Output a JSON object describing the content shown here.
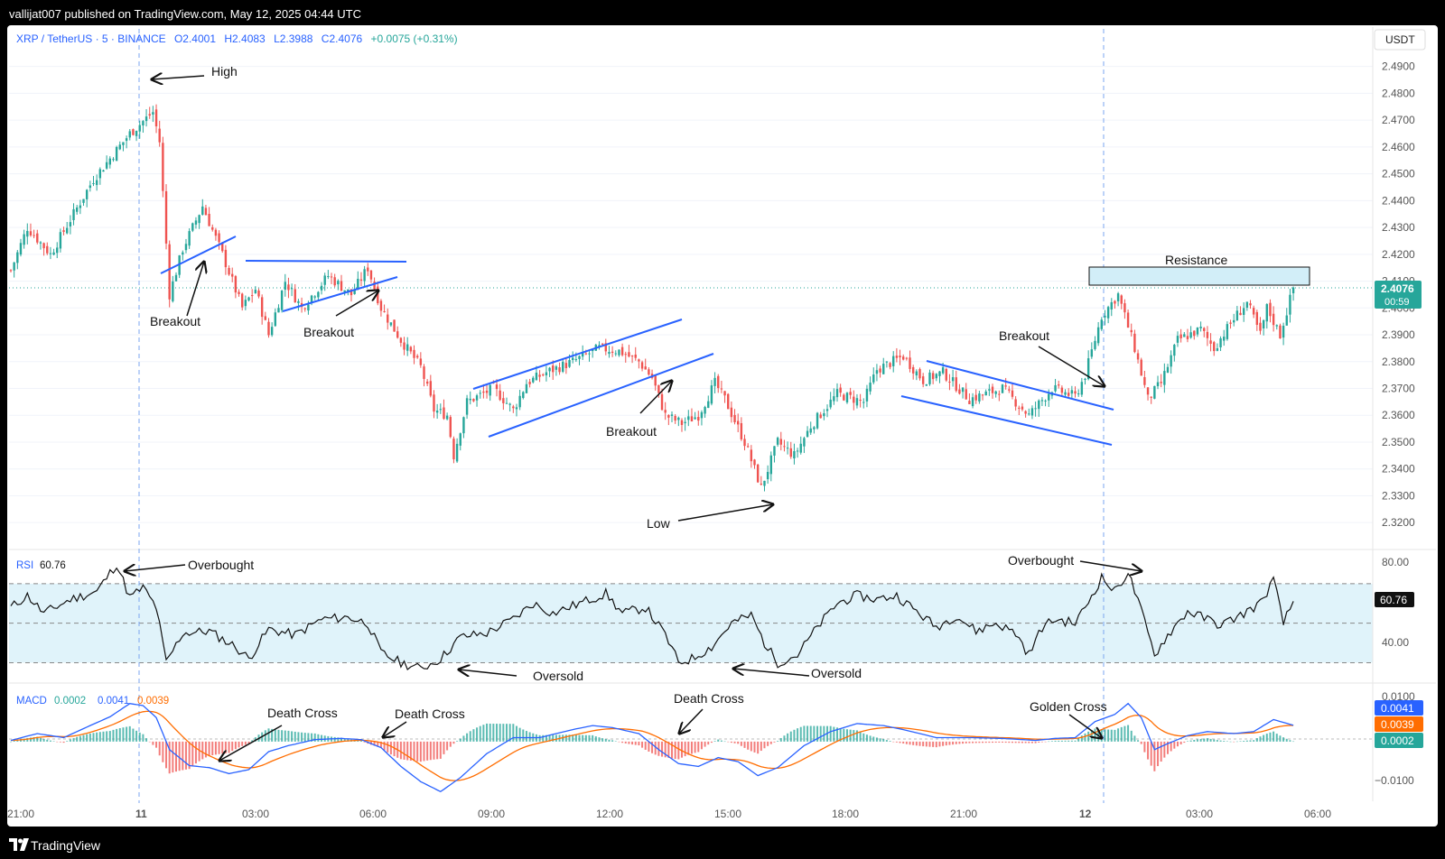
{
  "topbar": {
    "publisher": "vallijat007 published on TradingView.com, May 12, 2025 04:44 UTC"
  },
  "footer": {
    "brand": "TradingView"
  },
  "chart_data": [
    {
      "type": "candlestick",
      "legend": {
        "symbol": "XRP / TetherUS · 5 · BINANCE",
        "open": "O2.4001",
        "high": "H2.4083",
        "low": "L2.3988",
        "close": "C2.4076",
        "change": "+0.0075 (+0.31%)"
      },
      "currency": "USDT",
      "ylim": [
        2.313,
        2.502
      ],
      "y_ticks": [
        "2.4900",
        "2.4800",
        "2.4700",
        "2.4600",
        "2.4500",
        "2.4400",
        "2.4300",
        "2.4200",
        "2.4100",
        "2.4000",
        "2.3900",
        "2.3800",
        "2.3700",
        "2.3600",
        "2.3500",
        "2.3400",
        "2.3300",
        "2.3200"
      ],
      "last_price": {
        "value": "2.4076",
        "countdown": "00:59"
      },
      "x_ticks": [
        "21:00",
        "11",
        "03:00",
        "06:00",
        "09:00",
        "12:00",
        "15:00",
        "18:00",
        "21:00",
        "12",
        "03:00",
        "06:00"
      ],
      "bold_x_ticks": [
        "11",
        "12"
      ],
      "close_anchors": [
        [
          0,
          2.414
        ],
        [
          5,
          2.43
        ],
        [
          12,
          2.42
        ],
        [
          25,
          2.448
        ],
        [
          36,
          2.465
        ],
        [
          43,
          2.473
        ],
        [
          45,
          2.462
        ],
        [
          48,
          2.405
        ],
        [
          52,
          2.422
        ],
        [
          58,
          2.438
        ],
        [
          64,
          2.42
        ],
        [
          70,
          2.4
        ],
        [
          74,
          2.407
        ],
        [
          78,
          2.39
        ],
        [
          83,
          2.41
        ],
        [
          88,
          2.4
        ],
        [
          96,
          2.412
        ],
        [
          103,
          2.405
        ],
        [
          108,
          2.415
        ],
        [
          112,
          2.4
        ],
        [
          118,
          2.388
        ],
        [
          124,
          2.378
        ],
        [
          128,
          2.362
        ],
        [
          132,
          2.36
        ],
        [
          134,
          2.345
        ],
        [
          138,
          2.365
        ],
        [
          146,
          2.37
        ],
        [
          152,
          2.362
        ],
        [
          156,
          2.372
        ],
        [
          162,
          2.376
        ],
        [
          170,
          2.38
        ],
        [
          178,
          2.385
        ],
        [
          184,
          2.384
        ],
        [
          190,
          2.38
        ],
        [
          194,
          2.374
        ],
        [
          198,
          2.36
        ],
        [
          203,
          2.357
        ],
        [
          208,
          2.36
        ],
        [
          213,
          2.372
        ],
        [
          216,
          2.366
        ],
        [
          222,
          2.35
        ],
        [
          227,
          2.333
        ],
        [
          232,
          2.35
        ],
        [
          237,
          2.345
        ],
        [
          242,
          2.356
        ],
        [
          250,
          2.368
        ],
        [
          258,
          2.365
        ],
        [
          262,
          2.377
        ],
        [
          270,
          2.382
        ],
        [
          276,
          2.373
        ],
        [
          282,
          2.376
        ],
        [
          290,
          2.366
        ],
        [
          300,
          2.37
        ],
        [
          308,
          2.36
        ],
        [
          315,
          2.37
        ],
        [
          322,
          2.367
        ],
        [
          325,
          2.375
        ],
        [
          330,
          2.397
        ],
        [
          335,
          2.405
        ],
        [
          340,
          2.385
        ],
        [
          344,
          2.366
        ],
        [
          348,
          2.372
        ],
        [
          353,
          2.388
        ],
        [
          360,
          2.392
        ],
        [
          364,
          2.385
        ],
        [
          370,
          2.396
        ],
        [
          374,
          2.402
        ],
        [
          378,
          2.39
        ],
        [
          380,
          2.4
        ],
        [
          384,
          2.39
        ],
        [
          388,
          2.4076
        ]
      ],
      "annotations": {
        "high": "High",
        "low": "Low",
        "resistance": "Resistance",
        "breakout_1": "Breakout",
        "breakout_2": "Breakout",
        "breakout_3": "Breakout",
        "breakout_4": "Breakout"
      }
    },
    {
      "type": "line",
      "name": "RSI",
      "value": "60.76",
      "levels": [
        70,
        50,
        30
      ],
      "y_ticks": [
        "80.00",
        "40.00"
      ],
      "ylim": [
        22,
        85
      ],
      "rsi_anchors": [
        [
          0,
          58
        ],
        [
          5,
          64
        ],
        [
          10,
          55
        ],
        [
          18,
          62
        ],
        [
          26,
          66
        ],
        [
          32,
          80
        ],
        [
          36,
          63
        ],
        [
          40,
          68
        ],
        [
          44,
          58
        ],
        [
          47,
          30
        ],
        [
          52,
          45
        ],
        [
          60,
          46
        ],
        [
          68,
          38
        ],
        [
          72,
          32
        ],
        [
          78,
          47
        ],
        [
          86,
          44
        ],
        [
          94,
          52
        ],
        [
          102,
          53
        ],
        [
          108,
          50
        ],
        [
          112,
          35
        ],
        [
          118,
          30
        ],
        [
          124,
          27
        ],
        [
          130,
          32
        ],
        [
          136,
          43
        ],
        [
          144,
          45
        ],
        [
          152,
          52
        ],
        [
          158,
          60
        ],
        [
          164,
          55
        ],
        [
          172,
          60
        ],
        [
          180,
          65
        ],
        [
          185,
          55
        ],
        [
          192,
          58
        ],
        [
          198,
          44
        ],
        [
          202,
          30
        ],
        [
          206,
          32
        ],
        [
          212,
          38
        ],
        [
          218,
          50
        ],
        [
          224,
          54
        ],
        [
          228,
          40
        ],
        [
          232,
          30
        ],
        [
          238,
          34
        ],
        [
          244,
          48
        ],
        [
          250,
          60
        ],
        [
          256,
          64
        ],
        [
          262,
          62
        ],
        [
          268,
          64
        ],
        [
          274,
          56
        ],
        [
          280,
          48
        ],
        [
          286,
          54
        ],
        [
          292,
          46
        ],
        [
          298,
          50
        ],
        [
          304,
          45
        ],
        [
          308,
          34
        ],
        [
          312,
          48
        ],
        [
          316,
          52
        ],
        [
          322,
          50
        ],
        [
          325,
          58
        ],
        [
          330,
          73
        ],
        [
          334,
          66
        ],
        [
          338,
          76
        ],
        [
          342,
          56
        ],
        [
          346,
          34
        ],
        [
          350,
          44
        ],
        [
          356,
          56
        ],
        [
          362,
          52
        ],
        [
          366,
          49
        ],
        [
          372,
          54
        ],
        [
          378,
          60
        ],
        [
          382,
          72
        ],
        [
          385,
          50
        ],
        [
          388,
          60.76
        ]
      ],
      "annotations": {
        "overbought_1": "Overbought",
        "overbought_2": "Overbought",
        "oversold_1": "Oversold",
        "oversold_2": "Oversold"
      }
    },
    {
      "type": "line",
      "name": "MACD",
      "values": {
        "histogram": "0.0002",
        "macd": "0.0041",
        "signal": "0.0039"
      },
      "y_ticks": [
        "0.0100",
        "−0.0100"
      ],
      "ylim": [
        -0.014,
        0.0135
      ],
      "macd_anchors": [
        [
          0,
          0.0003
        ],
        [
          8,
          0.002
        ],
        [
          16,
          0.001
        ],
        [
          24,
          0.004
        ],
        [
          30,
          0.0062
        ],
        [
          36,
          0.0095
        ],
        [
          40,
          0.009
        ],
        [
          44,
          0.006
        ],
        [
          48,
          -0.002
        ],
        [
          54,
          -0.006
        ],
        [
          60,
          -0.0065
        ],
        [
          66,
          -0.008
        ],
        [
          72,
          -0.007
        ],
        [
          78,
          -0.0025
        ],
        [
          84,
          -0.001
        ],
        [
          92,
          0.0005
        ],
        [
          100,
          0.0008
        ],
        [
          106,
          0.0005
        ],
        [
          112,
          -0.0015
        ],
        [
          118,
          -0.0062
        ],
        [
          124,
          -0.01
        ],
        [
          130,
          -0.0125
        ],
        [
          136,
          -0.009
        ],
        [
          144,
          -0.003
        ],
        [
          152,
          0.001
        ],
        [
          160,
          0.001
        ],
        [
          170,
          0.003
        ],
        [
          176,
          0.004
        ],
        [
          182,
          0.0035
        ],
        [
          190,
          0.002
        ],
        [
          196,
          -0.002
        ],
        [
          202,
          -0.0055
        ],
        [
          208,
          -0.0062
        ],
        [
          214,
          -0.004
        ],
        [
          220,
          -0.005
        ],
        [
          226,
          -0.0085
        ],
        [
          232,
          -0.0065
        ],
        [
          240,
          -0.001
        ],
        [
          248,
          0.0025
        ],
        [
          256,
          0.0045
        ],
        [
          264,
          0.004
        ],
        [
          270,
          0.003
        ],
        [
          280,
          0.001
        ],
        [
          290,
          0.001
        ],
        [
          300,
          0.0008
        ],
        [
          310,
          0.0003
        ],
        [
          316,
          0.0008
        ],
        [
          322,
          0.001
        ],
        [
          328,
          0.005
        ],
        [
          334,
          0.0068
        ],
        [
          338,
          0.0095
        ],
        [
          342,
          0.006
        ],
        [
          346,
          -0.002
        ],
        [
          350,
          -0.0005
        ],
        [
          356,
          0.0015
        ],
        [
          362,
          0.0025
        ],
        [
          370,
          0.002
        ],
        [
          376,
          0.0025
        ],
        [
          382,
          0.0055
        ],
        [
          388,
          0.0041
        ]
      ],
      "annotations": {
        "death_cross_1": "Death Cross",
        "death_cross_2": "Death Cross",
        "death_cross_3": "Death Cross",
        "golden_cross": "Golden Cross"
      }
    }
  ],
  "colors": {
    "up": "#26a69a",
    "down": "#ef5350",
    "trendline": "#2962ff",
    "macd": "#2962ff",
    "signal": "#ff6d00",
    "rsi_band": "#e0f3fa",
    "resistance_fill": "#d2eef8",
    "price_tag": "#26a69a"
  }
}
